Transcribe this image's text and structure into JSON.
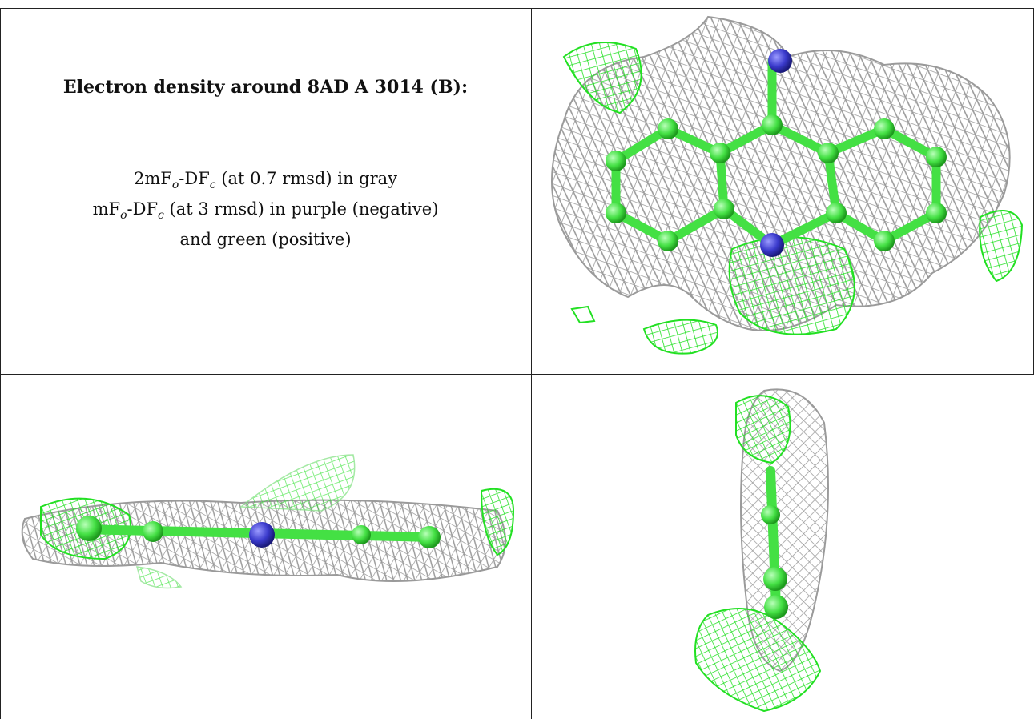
{
  "title": "Electron density around 8AD A 3014 (B):",
  "legend": {
    "line1": {
      "pre": "2mF",
      "sub1": "o",
      "mid": "-DF",
      "sub2": "c",
      "post": " (at 0.7 rmsd) in gray"
    },
    "line2": {
      "pre": "mF",
      "sub1": "o",
      "mid": "-DF",
      "sub2": "c",
      "post": " (at 3 rmsd) in purple (negative)"
    },
    "line3": "and green (positive)"
  },
  "colors": {
    "mesh_gray": "#9a9a9a",
    "mesh_green": "#22e022",
    "atom_green": "#44e044",
    "atom_blue": "#3a3acc",
    "border": "#222222"
  },
  "panels": {
    "top_right": "molecule-view-front",
    "bottom_left": "molecule-view-side",
    "bottom_right": "molecule-view-end"
  }
}
